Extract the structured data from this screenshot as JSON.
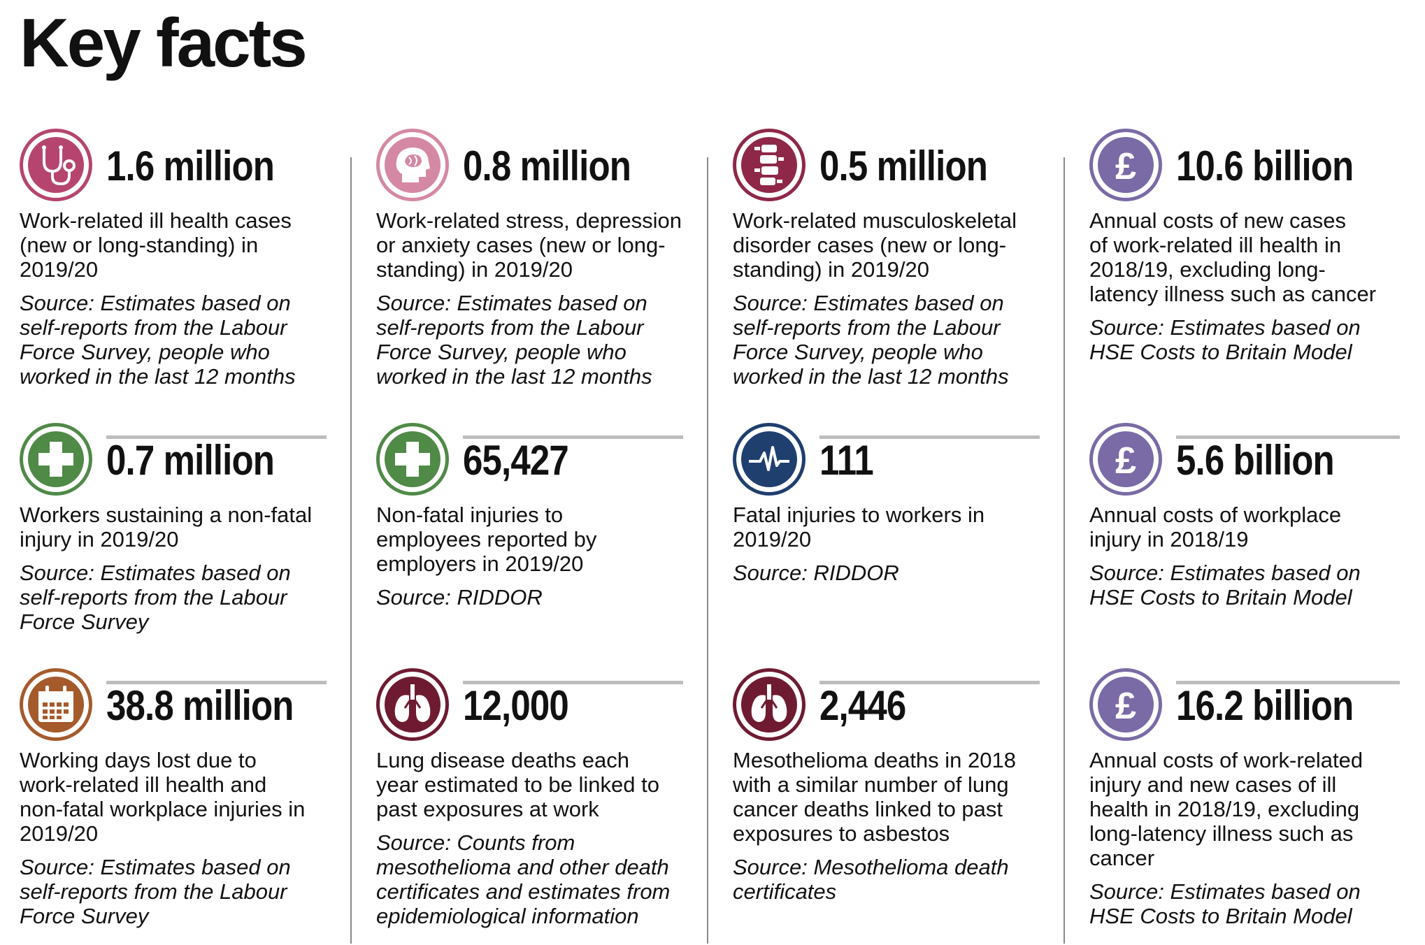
{
  "title": "Key facts",
  "colors": {
    "ill_health": "#b5456f",
    "stress": "#d488a4",
    "msd": "#8f2848",
    "costs": "#7a6aa6",
    "injury": "#4f8a47",
    "fatal": "#1f3f6e",
    "days_lost": "#a55a2c",
    "lung": "#6e1b31",
    "divider": "#8a8a8a",
    "rule": "#bdbdbd"
  },
  "facts": [
    {
      "icon": "stethoscope-icon",
      "figure": "1.6 million",
      "desc": "Work-related ill health cases\n(new or long-standing) in\n2019/20",
      "source": "Source: Estimates based on\nself-reports from the Labour\nForce Survey, people who\nworked in the last 12 months"
    },
    {
      "icon": "head-brain-icon",
      "figure": "0.8 million",
      "desc": "Work-related stress, depression\nor anxiety cases (new or long-\nstanding) in 2019/20",
      "source": "Source: Estimates based on\nself-reports from the Labour\nForce Survey, people who\nworked in the last 12 months"
    },
    {
      "icon": "spine-icon",
      "figure": "0.5 million",
      "desc": "Work-related musculoskeletal\ndisorder cases (new or long-\nstanding) in 2019/20",
      "source": "Source: Estimates based on\nself-reports from the Labour\nForce Survey, people who\nworked in the last 12 months"
    },
    {
      "icon": "pound-icon",
      "figure": "10.6 billion",
      "desc": "Annual costs of new cases\nof work-related ill health in\n2018/19, excluding long-\nlatency illness such as cancer",
      "source": "Source: Estimates based on\nHSE Costs to Britain Model"
    },
    {
      "icon": "first-aid-cross-icon",
      "figure": "0.7 million",
      "desc": "Workers sustaining a non-fatal\ninjury in 2019/20",
      "source": "Source: Estimates based on\nself-reports from the Labour\nForce Survey"
    },
    {
      "icon": "first-aid-cross-icon",
      "figure": "65,427",
      "desc": "Non-fatal injuries to\nemployees reported by\nemployers in 2019/20",
      "source": "Source: RIDDOR"
    },
    {
      "icon": "heartbeat-icon",
      "figure": "111",
      "desc": "Fatal injuries to workers in\n2019/20",
      "source": "Source: RIDDOR"
    },
    {
      "icon": "pound-icon",
      "figure": "5.6 billion",
      "desc": "Annual costs of workplace\ninjury in 2018/19",
      "source": "Source: Estimates based on\nHSE Costs to Britain Model"
    },
    {
      "icon": "calendar-icon",
      "figure": "38.8 million",
      "desc": "Working days lost due to\nwork-related ill health and\nnon-fatal workplace injuries in\n2019/20",
      "source": "Source: Estimates based on\nself-reports from the Labour\nForce Survey"
    },
    {
      "icon": "lungs-icon",
      "figure": "12,000",
      "desc": "Lung disease deaths each\nyear estimated to be linked to\npast exposures at work",
      "source": "Source: Counts from\nmesothelioma and other death\ncertificates and estimates from\nepidemiological information"
    },
    {
      "icon": "lungs-icon",
      "figure": "2,446",
      "desc": "Mesothelioma deaths in 2018\nwith a similar number of lung\ncancer deaths linked to past\nexposures to asbestos",
      "source": "Source: Mesothelioma death\ncertificates"
    },
    {
      "icon": "pound-icon",
      "figure": "16.2 billion",
      "desc": "Annual costs of work-related\ninjury and new cases of ill\nhealth in 2018/19, excluding\nlong-latency illness such as\ncancer",
      "source": "Source: Estimates based on\nHSE Costs to Britain Model"
    }
  ]
}
